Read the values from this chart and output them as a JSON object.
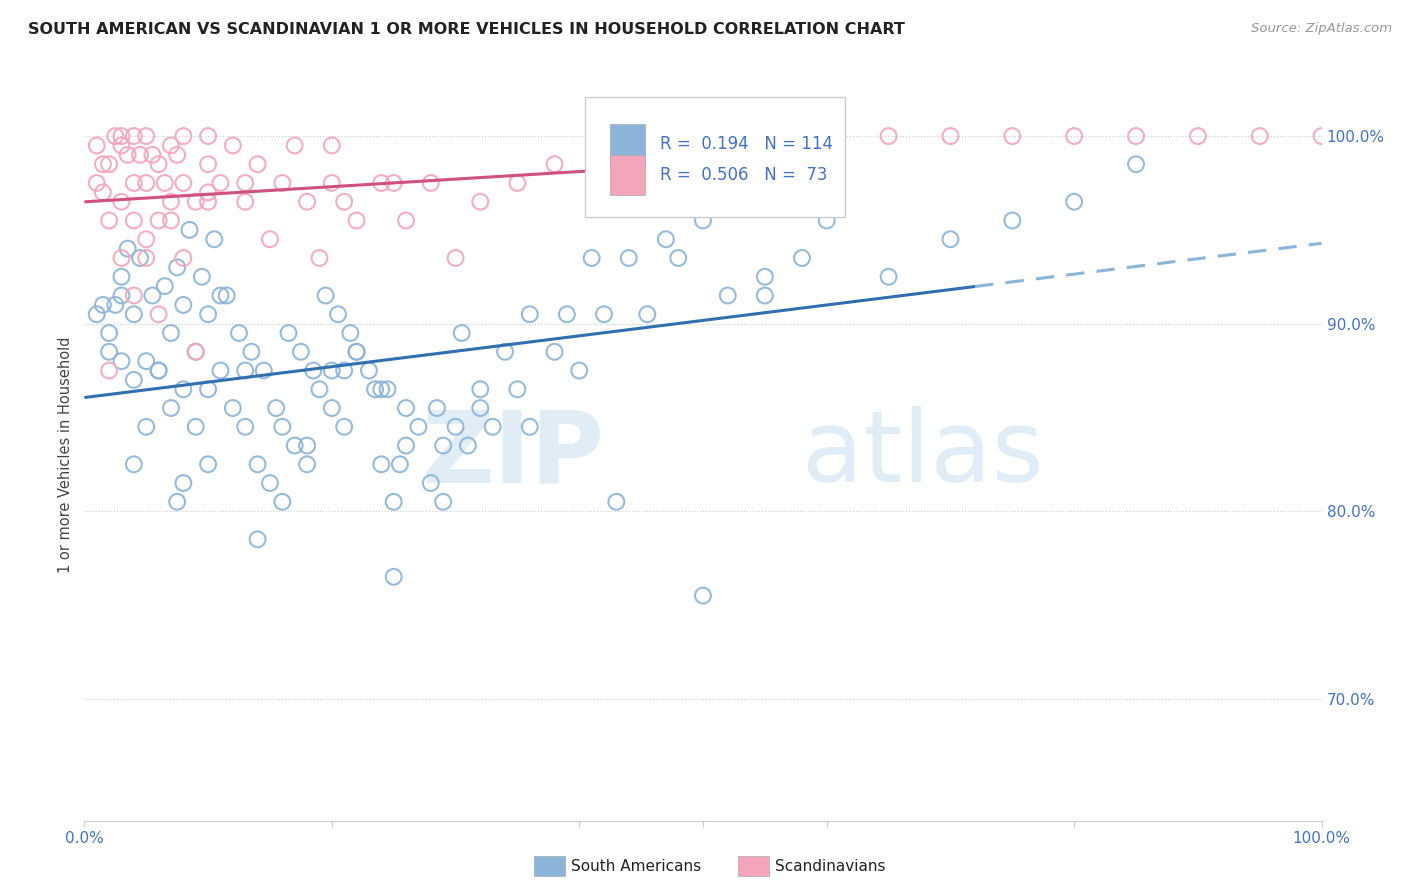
{
  "title": "SOUTH AMERICAN VS SCANDINAVIAN 1 OR MORE VEHICLES IN HOUSEHOLD CORRELATION CHART",
  "source": "Source: ZipAtlas.com",
  "ylabel": "1 or more Vehicles in Household",
  "legend1_label": "South Americans",
  "legend2_label": "Scandinavians",
  "r1": 0.194,
  "n1": 114,
  "r2": 0.506,
  "n2": 73,
  "color_blue": "#8ab4d8",
  "color_pink": "#f4a4bb",
  "line_blue": "#3070b0",
  "line_pink": "#d05080",
  "line_dash_color": "#8ab4d8",
  "watermark_zip": "ZIP",
  "watermark_atlas": "atlas",
  "title_color": "#222222",
  "source_color": "#999999",
  "axis_color": "#4472c4",
  "yticks": [
    "100.0%",
    "90.0%",
    "80.0%",
    "70.0%"
  ],
  "ytick_vals": [
    1.0,
    0.9,
    0.8,
    0.7
  ],
  "xlim": [
    0.0,
    1.0
  ],
  "ylim": [
    0.635,
    1.025
  ],
  "blue_line_solid_end": 0.72,
  "pink_line_end": 0.42,
  "scatter_blue_x": [
    0.01,
    0.015,
    0.02,
    0.025,
    0.03,
    0.03,
    0.035,
    0.04,
    0.04,
    0.045,
    0.05,
    0.05,
    0.055,
    0.06,
    0.065,
    0.07,
    0.07,
    0.075,
    0.08,
    0.08,
    0.085,
    0.09,
    0.095,
    0.1,
    0.1,
    0.105,
    0.11,
    0.115,
    0.12,
    0.125,
    0.13,
    0.135,
    0.14,
    0.145,
    0.15,
    0.155,
    0.16,
    0.165,
    0.17,
    0.175,
    0.18,
    0.185,
    0.19,
    0.195,
    0.2,
    0.205,
    0.21,
    0.215,
    0.22,
    0.23,
    0.235,
    0.24,
    0.245,
    0.25,
    0.255,
    0.26,
    0.27,
    0.28,
    0.285,
    0.29,
    0.3,
    0.305,
    0.31,
    0.32,
    0.33,
    0.35,
    0.36,
    0.38,
    0.4,
    0.42,
    0.43,
    0.455,
    0.5,
    0.52,
    0.55,
    0.58,
    0.6,
    0.65,
    0.7,
    0.75,
    0.075,
    0.08,
    0.09,
    0.06,
    0.04,
    0.03,
    0.02,
    0.1,
    0.11,
    0.13,
    0.2,
    0.21,
    0.18,
    0.14,
    0.16,
    0.29,
    0.22,
    0.24,
    0.25,
    0.26,
    0.32,
    0.34,
    0.36,
    0.39,
    0.41,
    0.44,
    0.47,
    0.5,
    0.53,
    0.57,
    0.8,
    0.85,
    0.55,
    0.48
  ],
  "scatter_blue_y": [
    0.905,
    0.91,
    0.885,
    0.91,
    0.88,
    0.915,
    0.94,
    0.87,
    0.905,
    0.935,
    0.845,
    0.88,
    0.915,
    0.875,
    0.92,
    0.855,
    0.895,
    0.93,
    0.865,
    0.91,
    0.95,
    0.885,
    0.925,
    0.865,
    0.905,
    0.945,
    0.875,
    0.915,
    0.855,
    0.895,
    0.845,
    0.885,
    0.825,
    0.875,
    0.815,
    0.855,
    0.845,
    0.895,
    0.835,
    0.885,
    0.825,
    0.875,
    0.865,
    0.915,
    0.855,
    0.905,
    0.845,
    0.895,
    0.885,
    0.875,
    0.865,
    0.825,
    0.865,
    0.765,
    0.825,
    0.855,
    0.845,
    0.815,
    0.855,
    0.805,
    0.845,
    0.895,
    0.835,
    0.855,
    0.845,
    0.865,
    0.845,
    0.885,
    0.875,
    0.905,
    0.805,
    0.905,
    0.755,
    0.915,
    0.925,
    0.935,
    0.955,
    0.925,
    0.945,
    0.955,
    0.805,
    0.815,
    0.845,
    0.875,
    0.825,
    0.925,
    0.895,
    0.825,
    0.915,
    0.875,
    0.875,
    0.875,
    0.835,
    0.785,
    0.805,
    0.835,
    0.885,
    0.865,
    0.805,
    0.835,
    0.865,
    0.885,
    0.905,
    0.905,
    0.935,
    0.935,
    0.945,
    0.955,
    0.975,
    0.995,
    0.965,
    0.985,
    0.915,
    0.935
  ],
  "scatter_pink_x": [
    0.01,
    0.01,
    0.015,
    0.02,
    0.02,
    0.025,
    0.03,
    0.03,
    0.03,
    0.035,
    0.04,
    0.04,
    0.04,
    0.045,
    0.05,
    0.05,
    0.05,
    0.055,
    0.06,
    0.06,
    0.065,
    0.07,
    0.07,
    0.075,
    0.08,
    0.08,
    0.09,
    0.1,
    0.1,
    0.1,
    0.11,
    0.12,
    0.13,
    0.14,
    0.15,
    0.16,
    0.17,
    0.18,
    0.19,
    0.2,
    0.21,
    0.22,
    0.24,
    0.26,
    0.28,
    0.3,
    0.32,
    0.35,
    0.38,
    0.42,
    0.55,
    0.6,
    0.65,
    0.7,
    0.75,
    0.8,
    0.85,
    0.9,
    0.95,
    1.0,
    0.03,
    0.04,
    0.05,
    0.06,
    0.07,
    0.08,
    0.09,
    0.1,
    0.13,
    0.2,
    0.25,
    0.02,
    0.015
  ],
  "scatter_pink_y": [
    0.975,
    0.995,
    0.985,
    0.955,
    0.985,
    1.0,
    0.965,
    0.995,
    1.0,
    0.99,
    0.955,
    0.975,
    1.0,
    0.99,
    0.945,
    0.975,
    1.0,
    0.99,
    0.955,
    0.985,
    0.975,
    0.965,
    0.995,
    0.99,
    0.975,
    1.0,
    0.965,
    0.985,
    1.0,
    0.97,
    0.975,
    0.995,
    0.965,
    0.985,
    0.945,
    0.975,
    0.995,
    0.965,
    0.935,
    0.975,
    0.965,
    0.955,
    0.975,
    0.955,
    0.975,
    0.935,
    0.965,
    0.975,
    0.985,
    0.995,
    1.0,
    1.0,
    1.0,
    1.0,
    1.0,
    1.0,
    1.0,
    1.0,
    1.0,
    1.0,
    0.935,
    0.915,
    0.935,
    0.905,
    0.955,
    0.935,
    0.885,
    0.965,
    0.975,
    0.995,
    0.975,
    0.875,
    0.97
  ]
}
